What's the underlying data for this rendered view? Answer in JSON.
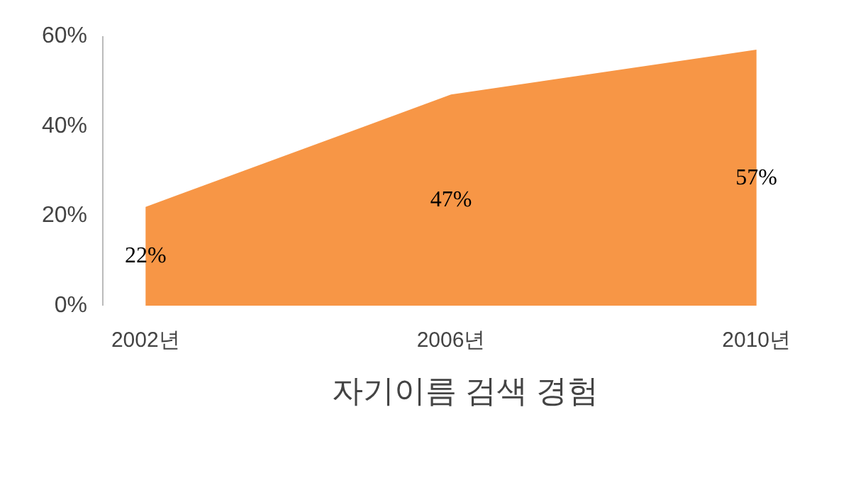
{
  "chart_data": {
    "type": "area",
    "categories": [
      "2002년",
      "2006년",
      "2010년"
    ],
    "series": [
      {
        "name": "자기이름 검색 경험",
        "color": "#f79646",
        "values": [
          22,
          47,
          57
        ]
      }
    ],
    "value_labels": [
      "22%",
      "47%",
      "57%"
    ],
    "ylim": [
      0,
      60
    ],
    "yticks": [
      {
        "value": 0,
        "label": "0%"
      },
      {
        "value": 20,
        "label": "20%"
      },
      {
        "value": 40,
        "label": "40%"
      },
      {
        "value": 60,
        "label": "60%"
      }
    ],
    "grid": false,
    "legend": "bottom"
  }
}
